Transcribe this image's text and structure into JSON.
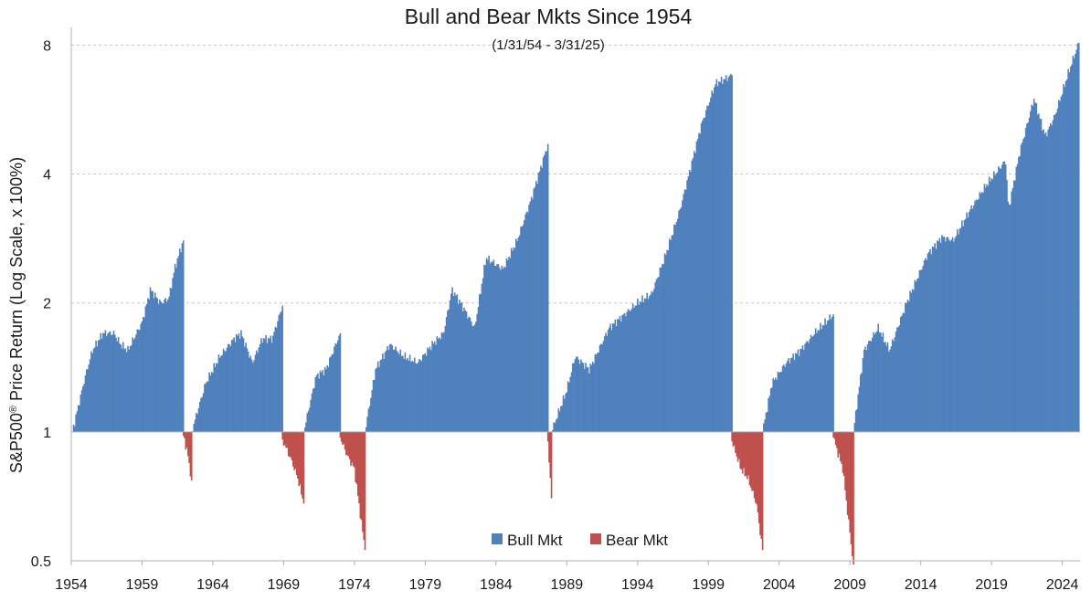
{
  "chart_data": {
    "type": "bar",
    "title": "Bull and Bear Mkts Since 1954",
    "subtitle": "(1/31/54 - 3/31/25)",
    "ylabel_main": "S&P500",
    "ylabel_sup": "®",
    "ylabel_rest": " Price Return (Log Scale, x 100%)",
    "y_scale": "log2",
    "ylim": [
      0.5,
      8.8
    ],
    "y_ticks": [
      "0.5",
      "1",
      "2",
      "4",
      "8"
    ],
    "x_ticks": [
      "1954",
      "1959",
      "1964",
      "1969",
      "1974",
      "1979",
      "1984",
      "1989",
      "1994",
      "1999",
      "2004",
      "2009",
      "2014",
      "2019",
      "2024"
    ],
    "xlim": [
      1954.0,
      2025.25
    ],
    "grid": "horizontal dashed",
    "legend_position": "bottom-center",
    "colors": {
      "bull": "#4f81bd",
      "bear": "#c0504d"
    },
    "series": [
      {
        "name": "Bull Mkt",
        "color": "#4f81bd"
      },
      {
        "name": "Bear Mkt",
        "color": "#c0504d"
      }
    ],
    "bull_markets": [
      {
        "start": 1954.08,
        "end": 1961.92,
        "anchors": [
          [
            1954.08,
            1.0
          ],
          [
            1955.0,
            1.35
          ],
          [
            1955.5,
            1.55
          ],
          [
            1956.25,
            1.7
          ],
          [
            1957.0,
            1.7
          ],
          [
            1957.5,
            1.6
          ],
          [
            1958.0,
            1.55
          ],
          [
            1959.0,
            1.8
          ],
          [
            1959.6,
            2.15
          ],
          [
            1960.3,
            2.0
          ],
          [
            1960.9,
            2.05
          ],
          [
            1961.3,
            2.4
          ],
          [
            1961.92,
            2.8
          ]
        ]
      },
      {
        "start": 1962.5,
        "end": 1968.92,
        "anchors": [
          [
            1962.5,
            1.0
          ],
          [
            1963.5,
            1.3
          ],
          [
            1964.5,
            1.5
          ],
          [
            1965.5,
            1.65
          ],
          [
            1966.0,
            1.7
          ],
          [
            1966.8,
            1.45
          ],
          [
            1967.5,
            1.65
          ],
          [
            1968.2,
            1.65
          ],
          [
            1968.92,
            1.97
          ]
        ]
      },
      {
        "start": 1970.42,
        "end": 1973.0,
        "anchors": [
          [
            1970.42,
            1.0
          ],
          [
            1971.3,
            1.35
          ],
          [
            1972.0,
            1.4
          ],
          [
            1973.0,
            1.7
          ]
        ]
      },
      {
        "start": 1974.75,
        "end": 1987.67,
        "anchors": [
          [
            1974.75,
            1.0
          ],
          [
            1975.5,
            1.4
          ],
          [
            1976.5,
            1.6
          ],
          [
            1977.5,
            1.5
          ],
          [
            1978.5,
            1.45
          ],
          [
            1979.5,
            1.6
          ],
          [
            1980.3,
            1.7
          ],
          [
            1980.9,
            2.15
          ],
          [
            1981.7,
            1.95
          ],
          [
            1982.5,
            1.75
          ],
          [
            1983.3,
            2.55
          ],
          [
            1984.5,
            2.4
          ],
          [
            1985.5,
            2.8
          ],
          [
            1986.5,
            3.5
          ],
          [
            1987.67,
            4.7
          ]
        ]
      },
      {
        "start": 1987.92,
        "end": 2000.67,
        "anchors": [
          [
            1987.92,
            1.0
          ],
          [
            1989.0,
            1.25
          ],
          [
            1989.6,
            1.5
          ],
          [
            1990.6,
            1.4
          ],
          [
            1992.0,
            1.75
          ],
          [
            1994.0,
            2.0
          ],
          [
            1995.0,
            2.1
          ],
          [
            1996.0,
            2.6
          ],
          [
            1997.0,
            3.3
          ],
          [
            1998.5,
            5.2
          ],
          [
            1999.5,
            6.5
          ],
          [
            2000.67,
            6.8
          ]
        ]
      },
      {
        "start": 2002.83,
        "end": 2007.83,
        "anchors": [
          [
            2002.83,
            1.0
          ],
          [
            2003.5,
            1.3
          ],
          [
            2004.5,
            1.45
          ],
          [
            2005.5,
            1.55
          ],
          [
            2006.5,
            1.7
          ],
          [
            2007.83,
            1.88
          ]
        ]
      },
      {
        "start": 2009.25,
        "end": 2025.17,
        "anchors": [
          [
            2009.25,
            1.0
          ],
          [
            2010.0,
            1.55
          ],
          [
            2011.0,
            1.75
          ],
          [
            2011.8,
            1.55
          ],
          [
            2013.0,
            2.0
          ],
          [
            2014.5,
            2.6
          ],
          [
            2015.5,
            2.85
          ],
          [
            2016.3,
            2.8
          ],
          [
            2017.5,
            3.3
          ],
          [
            2018.7,
            3.8
          ],
          [
            2019.5,
            4.1
          ],
          [
            2020.0,
            4.3
          ],
          [
            2020.2,
            3.3
          ],
          [
            2021.0,
            4.5
          ],
          [
            2022.0,
            6.0
          ],
          [
            2022.8,
            4.9
          ],
          [
            2023.5,
            5.5
          ],
          [
            2024.5,
            7.0
          ],
          [
            2025.17,
            8.1
          ]
        ]
      }
    ],
    "bear_markets": [
      {
        "start": 1961.92,
        "end": 1962.5,
        "anchors": [
          [
            1961.92,
            0.98
          ],
          [
            1962.2,
            0.9
          ],
          [
            1962.5,
            0.77
          ]
        ]
      },
      {
        "start": 1968.92,
        "end": 1970.42,
        "anchors": [
          [
            1968.92,
            0.96
          ],
          [
            1969.6,
            0.85
          ],
          [
            1970.0,
            0.78
          ],
          [
            1970.42,
            0.68
          ]
        ]
      },
      {
        "start": 1973.0,
        "end": 1974.75,
        "anchors": [
          [
            1973.0,
            0.97
          ],
          [
            1973.5,
            0.88
          ],
          [
            1974.0,
            0.82
          ],
          [
            1974.75,
            0.53
          ]
        ]
      },
      {
        "start": 1987.67,
        "end": 1987.92,
        "anchors": [
          [
            1987.67,
            0.95
          ],
          [
            1987.92,
            0.7
          ]
        ]
      },
      {
        "start": 2000.67,
        "end": 2002.83,
        "anchors": [
          [
            2000.67,
            0.95
          ],
          [
            2001.3,
            0.82
          ],
          [
            2001.8,
            0.78
          ],
          [
            2002.4,
            0.68
          ],
          [
            2002.83,
            0.53
          ]
        ]
      },
      {
        "start": 2007.83,
        "end": 2009.25,
        "anchors": [
          [
            2007.83,
            0.97
          ],
          [
            2008.5,
            0.82
          ],
          [
            2009.0,
            0.58
          ],
          [
            2009.25,
            0.49
          ]
        ]
      }
    ]
  }
}
